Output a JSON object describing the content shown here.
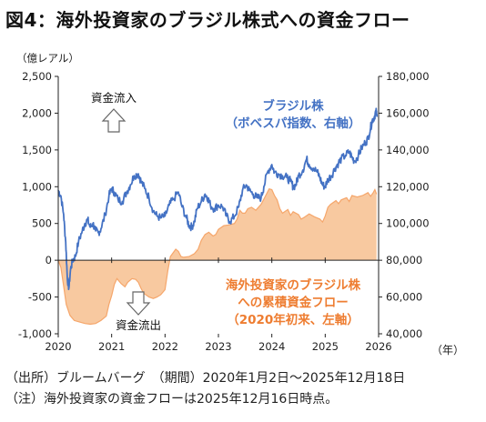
{
  "title": "図4：海外投資家のブラジル株式への資金フロー",
  "chart_data": {
    "type": "area+line",
    "left_axis_label": "（億レアル）",
    "x_unit_label": "（年）",
    "x_ticks": [
      "2020",
      "2021",
      "2022",
      "2023",
      "2024",
      "2025",
      "2026"
    ],
    "y_left_ticks": [
      "2,500",
      "2,000",
      "1,500",
      "1,000",
      "500",
      "0",
      "-500",
      "-1,000"
    ],
    "y_right_ticks": [
      "180,000",
      "160,000",
      "140,000",
      "120,000",
      "100,000",
      "80,000",
      "60,000",
      "40,000"
    ],
    "y_left_range": [
      -1000,
      2500
    ],
    "y_right_range": [
      40000,
      180000
    ],
    "series": [
      {
        "name": "海外投資家のブラジル株への累積資金フロー（2020年初来、左軸）",
        "label_lines": [
          "海外投資家のブラジル株",
          "への累積資金フロー",
          "（2020年初来、左軸）"
        ],
        "axis": "left",
        "color": "#f5a66b",
        "points": [
          [
            2020.0,
            0
          ],
          [
            2020.05,
            -100
          ],
          [
            2020.1,
            -350
          ],
          [
            2020.15,
            -600
          ],
          [
            2020.22,
            -750
          ],
          [
            2020.3,
            -820
          ],
          [
            2020.4,
            -840
          ],
          [
            2020.5,
            -860
          ],
          [
            2020.6,
            -870
          ],
          [
            2020.7,
            -860
          ],
          [
            2020.8,
            -820
          ],
          [
            2020.9,
            -760
          ],
          [
            2020.95,
            -600
          ],
          [
            2021.0,
            -480
          ],
          [
            2021.05,
            -330
          ],
          [
            2021.1,
            -250
          ],
          [
            2021.18,
            -320
          ],
          [
            2021.25,
            -360
          ],
          [
            2021.3,
            -300
          ],
          [
            2021.38,
            -250
          ],
          [
            2021.45,
            -260
          ],
          [
            2021.5,
            -300
          ],
          [
            2021.55,
            -380
          ],
          [
            2021.6,
            -450
          ],
          [
            2021.7,
            -500
          ],
          [
            2021.78,
            -520
          ],
          [
            2021.85,
            -500
          ],
          [
            2021.92,
            -470
          ],
          [
            2022.0,
            -400
          ],
          [
            2022.05,
            -150
          ],
          [
            2022.1,
            50
          ],
          [
            2022.15,
            100
          ],
          [
            2022.2,
            150
          ],
          [
            2022.25,
            120
          ],
          [
            2022.3,
            50
          ],
          [
            2022.35,
            40
          ],
          [
            2022.45,
            50
          ],
          [
            2022.55,
            90
          ],
          [
            2022.62,
            150
          ],
          [
            2022.68,
            270
          ],
          [
            2022.75,
            350
          ],
          [
            2022.82,
            380
          ],
          [
            2022.9,
            330
          ],
          [
            2022.95,
            350
          ],
          [
            2023.0,
            420
          ],
          [
            2023.1,
            470
          ],
          [
            2023.2,
            480
          ],
          [
            2023.3,
            500
          ],
          [
            2023.35,
            560
          ],
          [
            2023.4,
            680
          ],
          [
            2023.45,
            640
          ],
          [
            2023.5,
            640
          ],
          [
            2023.55,
            700
          ],
          [
            2023.62,
            720
          ],
          [
            2023.7,
            680
          ],
          [
            2023.8,
            760
          ],
          [
            2023.85,
            830
          ],
          [
            2023.9,
            900
          ],
          [
            2023.95,
            970
          ],
          [
            2024.0,
            960
          ],
          [
            2024.05,
            880
          ],
          [
            2024.1,
            820
          ],
          [
            2024.15,
            700
          ],
          [
            2024.2,
            640
          ],
          [
            2024.3,
            690
          ],
          [
            2024.35,
            610
          ],
          [
            2024.4,
            660
          ],
          [
            2024.5,
            620
          ],
          [
            2024.55,
            560
          ],
          [
            2024.6,
            580
          ],
          [
            2024.7,
            630
          ],
          [
            2024.8,
            590
          ],
          [
            2024.9,
            560
          ],
          [
            2024.95,
            520
          ],
          [
            2025.0,
            600
          ],
          [
            2025.05,
            720
          ],
          [
            2025.1,
            760
          ],
          [
            2025.2,
            810
          ],
          [
            2025.25,
            770
          ],
          [
            2025.3,
            820
          ],
          [
            2025.4,
            850
          ],
          [
            2025.45,
            800
          ],
          [
            2025.5,
            880
          ],
          [
            2025.6,
            860
          ],
          [
            2025.7,
            880
          ],
          [
            2025.8,
            920
          ],
          [
            2025.85,
            870
          ],
          [
            2025.9,
            920
          ],
          [
            2025.93,
            960
          ],
          [
            2025.96,
            900
          ]
        ]
      },
      {
        "name": "ブラジル株（ボベスパ指数、右軸）",
        "label_lines": [
          "ブラジル株",
          "（ボベスパ指数、右軸）"
        ],
        "axis": "right",
        "color": "#4472c4",
        "points": [
          [
            2020.0,
            118000
          ],
          [
            2020.05,
            115000
          ],
          [
            2020.1,
            105000
          ],
          [
            2020.14,
            90000
          ],
          [
            2020.17,
            70000
          ],
          [
            2020.2,
            65000
          ],
          [
            2020.23,
            75000
          ],
          [
            2020.27,
            80000
          ],
          [
            2020.32,
            82000
          ],
          [
            2020.38,
            90000
          ],
          [
            2020.45,
            96000
          ],
          [
            2020.5,
            100000
          ],
          [
            2020.55,
            102000
          ],
          [
            2020.6,
            98000
          ],
          [
            2020.65,
            100000
          ],
          [
            2020.7,
            96000
          ],
          [
            2020.75,
            95000
          ],
          [
            2020.8,
            97000
          ],
          [
            2020.88,
            105000
          ],
          [
            2020.95,
            115000
          ],
          [
            2021.0,
            119000
          ],
          [
            2021.05,
            117000
          ],
          [
            2021.12,
            113000
          ],
          [
            2021.2,
            112000
          ],
          [
            2021.28,
            117000
          ],
          [
            2021.35,
            121000
          ],
          [
            2021.42,
            126000
          ],
          [
            2021.5,
            127000
          ],
          [
            2021.55,
            123000
          ],
          [
            2021.62,
            119000
          ],
          [
            2021.7,
            114000
          ],
          [
            2021.78,
            107000
          ],
          [
            2021.85,
            104000
          ],
          [
            2021.92,
            103000
          ],
          [
            2022.0,
            104000
          ],
          [
            2022.08,
            110000
          ],
          [
            2022.15,
            113000
          ],
          [
            2022.25,
            117000
          ],
          [
            2022.32,
            109000
          ],
          [
            2022.4,
            103000
          ],
          [
            2022.45,
            99000
          ],
          [
            2022.5,
            98000
          ],
          [
            2022.55,
            101000
          ],
          [
            2022.6,
            108000
          ],
          [
            2022.68,
            112000
          ],
          [
            2022.75,
            116000
          ],
          [
            2022.8,
            114000
          ],
          [
            2022.85,
            110000
          ],
          [
            2022.92,
            108000
          ],
          [
            2023.0,
            110000
          ],
          [
            2023.08,
            109000
          ],
          [
            2023.15,
            104000
          ],
          [
            2023.22,
            101000
          ],
          [
            2023.3,
            104000
          ],
          [
            2023.38,
            109000
          ],
          [
            2023.45,
            118000
          ],
          [
            2023.52,
            121000
          ],
          [
            2023.58,
            118000
          ],
          [
            2023.65,
            116000
          ],
          [
            2023.72,
            114000
          ],
          [
            2023.8,
            114000
          ],
          [
            2023.85,
            120000
          ],
          [
            2023.92,
            128000
          ],
          [
            2024.0,
            132000
          ],
          [
            2024.05,
            128000
          ],
          [
            2024.12,
            127000
          ],
          [
            2024.2,
            126000
          ],
          [
            2024.28,
            125000
          ],
          [
            2024.35,
            123000
          ],
          [
            2024.4,
            120000
          ],
          [
            2024.45,
            121000
          ],
          [
            2024.5,
            126000
          ],
          [
            2024.58,
            129000
          ],
          [
            2024.65,
            135000
          ],
          [
            2024.7,
            132000
          ],
          [
            2024.78,
            130000
          ],
          [
            2024.85,
            128000
          ],
          [
            2024.9,
            125000
          ],
          [
            2024.95,
            121000
          ],
          [
            2025.0,
            120000
          ],
          [
            2025.05,
            124000
          ],
          [
            2025.12,
            126000
          ],
          [
            2025.18,
            130000
          ],
          [
            2025.25,
            133000
          ],
          [
            2025.3,
            135000
          ],
          [
            2025.38,
            137000
          ],
          [
            2025.45,
            139000
          ],
          [
            2025.5,
            136000
          ],
          [
            2025.55,
            134000
          ],
          [
            2025.62,
            137000
          ],
          [
            2025.68,
            141000
          ],
          [
            2025.75,
            144000
          ],
          [
            2025.8,
            146000
          ],
          [
            2025.85,
            152000
          ],
          [
            2025.88,
            156000
          ],
          [
            2025.92,
            158000
          ],
          [
            2025.95,
            161000
          ],
          [
            2025.97,
            158000
          ]
        ]
      }
    ],
    "annotations": {
      "inflow": "資金流入",
      "outflow": "資金流出"
    }
  },
  "notes": {
    "source": "（出所）ブルームバーグ　（期間）2020年1月2日～2025年12月18日",
    "note": "（注）海外投資家の資金フローは2025年12月16日時点。"
  },
  "colors": {
    "bovespa_line": "#4472c4",
    "flow_fill": "#f8c9a0",
    "flow_stroke": "#f5a66b",
    "flow_label": "#ee7d31",
    "bovespa_label": "#4472c4"
  }
}
